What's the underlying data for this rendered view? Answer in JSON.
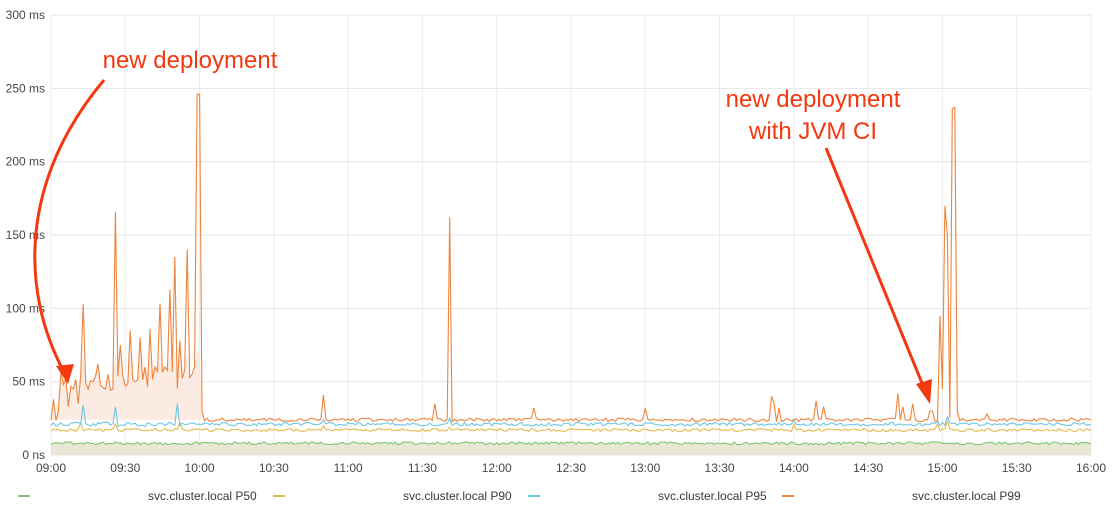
{
  "chart_data": {
    "type": "line",
    "y_ticks": [
      "0 ns",
      "50 ms",
      "100 ms",
      "150 ms",
      "200 ms",
      "250 ms",
      "300 ms"
    ],
    "y_tick_values": [
      0,
      50,
      100,
      150,
      200,
      250,
      300
    ],
    "x_ticks": [
      "09:00",
      "09:30",
      "10:00",
      "10:30",
      "11:00",
      "11:30",
      "12:00",
      "12:30",
      "13:00",
      "13:30",
      "14:00",
      "14:30",
      "15:00",
      "15:30",
      "16:00"
    ],
    "x_tick_minutes": [
      0,
      30,
      60,
      90,
      120,
      150,
      180,
      210,
      240,
      270,
      300,
      330,
      360,
      390,
      420
    ],
    "ylim": [
      0,
      300
    ],
    "xlim": [
      0,
      420
    ],
    "grid": true,
    "series": [
      {
        "name": "svc.cluster.local P50",
        "color": "#7bc86f",
        "fill": "#e9e7d6",
        "base": 8,
        "spikes": []
      },
      {
        "name": "svc.cluster.local P90",
        "color": "#e8b84a",
        "base": 17,
        "spikes": [
          [
            12,
            22
          ],
          [
            26,
            21
          ],
          [
            52,
            22
          ],
          [
            110,
            20
          ],
          [
            161,
            19
          ],
          [
            300,
            21
          ],
          [
            358,
            21
          ],
          [
            362,
            23
          ]
        ]
      },
      {
        "name": "svc.cluster.local P95",
        "color": "#6ec6e6",
        "base": 21,
        "spikes": [
          [
            13,
            34
          ],
          [
            26,
            33
          ],
          [
            51,
            35
          ],
          [
            110,
            24
          ],
          [
            161,
            25
          ],
          [
            300,
            24
          ],
          [
            358,
            23
          ],
          [
            362,
            26
          ]
        ]
      },
      {
        "name": "svc.cluster.local P99",
        "color": "#ef843c",
        "fill": "#fbe6dc",
        "base": 24,
        "spikes": [
          [
            1,
            38
          ],
          [
            3,
            30
          ],
          [
            5,
            48
          ],
          [
            7,
            33
          ],
          [
            9,
            45
          ],
          [
            11,
            35
          ],
          [
            13,
            103
          ],
          [
            15,
            45
          ],
          [
            17,
            50
          ],
          [
            19,
            62
          ],
          [
            21,
            46
          ],
          [
            23,
            55
          ],
          [
            25,
            45
          ],
          [
            26,
            166
          ],
          [
            28,
            75
          ],
          [
            30,
            47
          ],
          [
            32,
            85
          ],
          [
            34,
            50
          ],
          [
            36,
            80
          ],
          [
            38,
            60
          ],
          [
            40,
            86
          ],
          [
            42,
            60
          ],
          [
            44,
            103
          ],
          [
            46,
            60
          ],
          [
            48,
            113
          ],
          [
            50,
            135
          ],
          [
            52,
            78
          ],
          [
            54,
            58
          ],
          [
            55,
            140
          ],
          [
            57,
            55
          ],
          [
            58,
            60
          ],
          [
            59,
            246
          ],
          [
            60,
            246
          ],
          [
            61,
            30
          ],
          [
            110,
            41
          ],
          [
            161,
            162
          ],
          [
            155,
            35
          ],
          [
            195,
            32
          ],
          [
            240,
            32
          ],
          [
            291,
            40
          ],
          [
            292,
            35
          ],
          [
            294,
            32
          ],
          [
            309,
            37
          ],
          [
            312,
            33
          ],
          [
            342,
            42
          ],
          [
            344,
            33
          ],
          [
            348,
            35
          ],
          [
            355,
            30
          ],
          [
            356,
            30
          ],
          [
            359,
            95
          ],
          [
            360,
            45
          ],
          [
            361,
            170
          ],
          [
            362,
            150
          ],
          [
            364,
            236
          ],
          [
            365,
            237
          ],
          [
            366,
            30
          ],
          [
            378,
            28
          ]
        ]
      }
    ],
    "annotations": [
      {
        "lines": [
          "new deployment"
        ]
      },
      {
        "lines": [
          "new deployment",
          "with JVM CI"
        ]
      }
    ]
  }
}
